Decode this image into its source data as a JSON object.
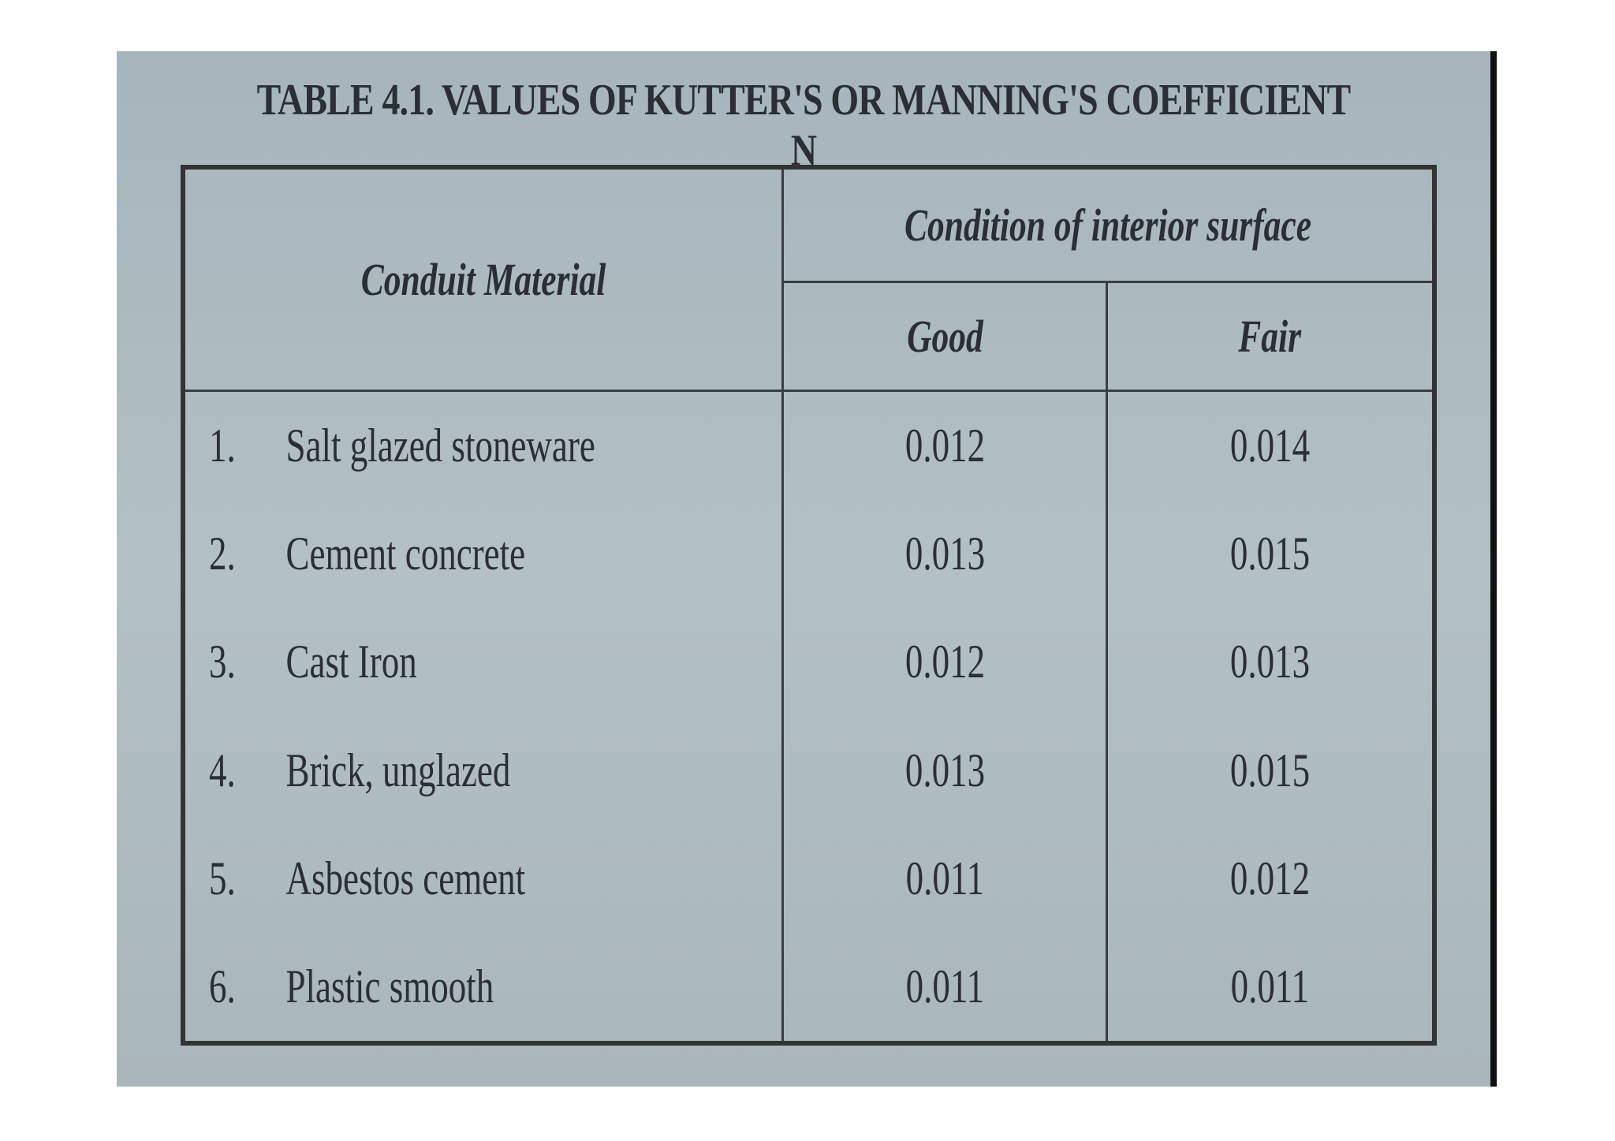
{
  "header": {
    "title": "TABLE 4.1. VALUES OF KUTTER'S OR MANNING'S COEFFICIENT N"
  },
  "table": {
    "columns": {
      "material": "Conduit Material",
      "condition": "Condition of interior surface",
      "good": "Good",
      "fair": "Fair"
    },
    "rows": [
      [
        "1.",
        "Salt glazed stoneware",
        "0.012",
        "0.014"
      ],
      [
        "2.",
        "Cement concrete",
        "0.013",
        "0.015"
      ],
      [
        "3.",
        "Cast Iron",
        "0.012",
        "0.013"
      ],
      [
        "4.",
        "Brick, unglazed",
        "0.013",
        "0.015"
      ],
      [
        "5.",
        "Asbestos cement",
        "0.011",
        "0.012"
      ],
      [
        "6.",
        "Plastic smooth",
        "0.011",
        "0.011"
      ]
    ]
  }
}
